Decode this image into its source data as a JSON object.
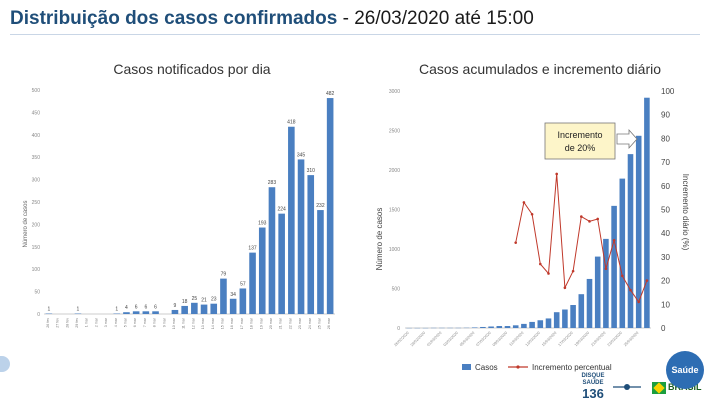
{
  "page": {
    "title_main": "Distribuição dos casos confirmados",
    "title_sep": " - ",
    "title_date": "26/03/2020 até 15:00"
  },
  "footer": {
    "disque_label": "DISQUE SAÚDE",
    "disque_number": "136",
    "brasil_label": "BRASIL",
    "saude_badge": "Saúde"
  },
  "chart_data": [
    {
      "type": "bar",
      "title": "Casos notificados por dia",
      "ylabel": "Número de casos",
      "ylim": [
        0,
        500
      ],
      "yticks": [
        0,
        50,
        100,
        150,
        200,
        250,
        300,
        350,
        400,
        450,
        500
      ],
      "color": "#4a7fc1",
      "categories": [
        "26 fev",
        "27 fev",
        "28 fev",
        "29 fev",
        "1 mar",
        "2 mar",
        "3 mar",
        "4 mar",
        "5 mar",
        "6 mar",
        "7 mar",
        "8 mar",
        "9 mar",
        "10 mar",
        "11 mar",
        "12 mar",
        "13 mar",
        "14 mar",
        "15 mar",
        "16 mar",
        "17 mar",
        "18 mar",
        "19 mar",
        "20 mar",
        "21 mar",
        "22 mar",
        "23 mar",
        "24 mar",
        "25 mar",
        "26 mar"
      ],
      "values": [
        1,
        0,
        0,
        1,
        0,
        0,
        0,
        1,
        4,
        6,
        6,
        6,
        0,
        9,
        18,
        25,
        21,
        23,
        79,
        34,
        57,
        137,
        193,
        283,
        224,
        418,
        345,
        310,
        232,
        482
      ],
      "data_labels": [
        "1",
        "",
        "",
        "1",
        "",
        "",
        "",
        "1",
        "4",
        "6",
        "6",
        "6",
        "",
        "9",
        "18",
        "25",
        "21",
        "23",
        "79",
        "34",
        "57",
        "137",
        "193",
        "283",
        "224",
        "418",
        "345",
        "310",
        "232",
        "482"
      ],
      "grid": false
    },
    {
      "type": "bar+line",
      "title": "Casos acumulados e incremento diário",
      "ylabel": "Número de casos",
      "ylabel_right": "Incremento diário (%)",
      "ylim": [
        0,
        3000
      ],
      "ylim_right": [
        0,
        100
      ],
      "yticks": [
        0,
        500,
        1000,
        1500,
        2000,
        2500,
        3000
      ],
      "yticks_right": [
        0,
        10,
        20,
        30,
        40,
        50,
        60,
        70,
        80,
        90,
        100
      ],
      "categories": [
        "26/02/2020",
        "27/02/2020",
        "28/02/2020",
        "29/02/2020",
        "01/03/2020",
        "02/03/2020",
        "03/03/2020",
        "04/03/2020",
        "05/03/2020",
        "06/03/2020",
        "07/03/2020",
        "08/03/2020",
        "09/03/2020",
        "10/03/2020",
        "11/03/2020",
        "12/03/2020",
        "13/03/2020",
        "14/03/2020",
        "15/03/2020",
        "16/03/2020",
        "17/03/2020",
        "18/03/2020",
        "19/03/2020",
        "20/03/2020",
        "21/03/2020",
        "22/03/2020",
        "23/03/2020",
        "24/03/2020",
        "25/03/2020",
        "26/03/2020"
      ],
      "tick_labels": [
        "26/02/2020",
        "",
        "28/02/2020",
        "",
        "01/03/2020",
        "",
        "03/03/2020",
        "",
        "05/03/2020",
        "",
        "07/03/2020",
        "",
        "09/03/2020",
        "",
        "11/03/2020",
        "",
        "13/03/2020",
        "",
        "15/03/2020",
        "",
        "17/03/2020",
        "",
        "19/03/2020",
        "",
        "21/03/2020",
        "",
        "23/03/2020",
        "",
        "25/03/2020",
        ""
      ],
      "series": [
        {
          "name": "Casos",
          "type": "bar",
          "color": "#4a7fc1",
          "values": [
            1,
            1,
            1,
            2,
            2,
            2,
            2,
            3,
            7,
            13,
            19,
            25,
            25,
            34,
            52,
            77,
            98,
            121,
            200,
            234,
            291,
            428,
            621,
            904,
            1128,
            1546,
            1891,
            2201,
            2433,
            2915
          ]
        },
        {
          "name": "Incremento percentual",
          "type": "line",
          "color": "#c0392b",
          "values": [
            null,
            null,
            null,
            null,
            null,
            null,
            null,
            null,
            null,
            null,
            null,
            null,
            null,
            36,
            53,
            48,
            27,
            23,
            65,
            17,
            24,
            47,
            45,
            46,
            25,
            37,
            22,
            16,
            11,
            20
          ]
        }
      ],
      "annotation": {
        "text_line1": "Incremento",
        "text_line2": "de 20%",
        "target_index": 29
      },
      "legend_position": "bottom",
      "grid": false
    }
  ]
}
